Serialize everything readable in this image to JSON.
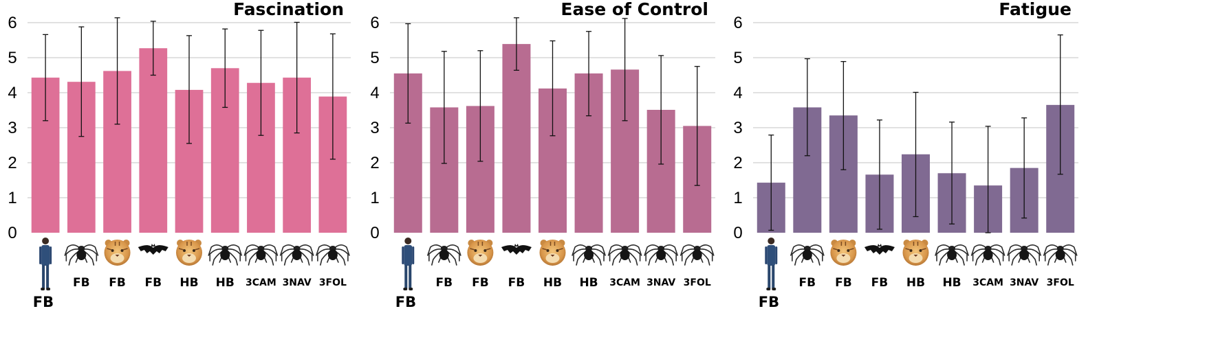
{
  "chart_data": [
    {
      "type": "bar",
      "title": "Fascination",
      "color": "#de7097",
      "ylim": [
        0,
        6
      ],
      "yticks": [
        0,
        1,
        2,
        3,
        4,
        5,
        6
      ],
      "grid": true,
      "categories": [
        "FB",
        "FB",
        "FB",
        "FB",
        "HB",
        "HB",
        "3CAM",
        "3NAV",
        "3FOL"
      ],
      "category_icons": [
        "person-icon",
        "spider-icon",
        "tiger-icon",
        "bat-icon",
        "tiger-icon",
        "spider-icon",
        "spider-icon",
        "spider-icon",
        "spider-icon"
      ],
      "values": [
        4.43,
        4.31,
        4.62,
        5.27,
        4.08,
        4.7,
        4.28,
        4.43,
        3.89
      ],
      "error_low": [
        3.2,
        2.75,
        3.1,
        4.5,
        2.55,
        3.58,
        2.78,
        2.85,
        2.1
      ],
      "error_high": [
        5.66,
        5.88,
        6.14,
        6.04,
        5.63,
        5.82,
        5.78,
        6.01,
        5.68
      ]
    },
    {
      "type": "bar",
      "title": "Ease of Control",
      "color": "#b86c91",
      "ylim": [
        0,
        6
      ],
      "yticks": [
        0,
        1,
        2,
        3,
        4,
        5,
        6
      ],
      "grid": true,
      "categories": [
        "FB",
        "FB",
        "FB",
        "FB",
        "HB",
        "HB",
        "3CAM",
        "3NAV",
        "3FOL"
      ],
      "category_icons": [
        "person-icon",
        "spider-icon",
        "tiger-icon",
        "bat-icon",
        "tiger-icon",
        "spider-icon",
        "spider-icon",
        "spider-icon",
        "spider-icon"
      ],
      "values": [
        4.55,
        3.58,
        3.62,
        5.39,
        4.12,
        4.55,
        4.66,
        3.51,
        3.05
      ],
      "error_low": [
        3.13,
        1.98,
        2.04,
        4.64,
        2.77,
        3.34,
        3.2,
        1.96,
        1.35
      ],
      "error_high": [
        5.97,
        5.18,
        5.2,
        6.14,
        5.48,
        5.75,
        6.12,
        5.06,
        4.75
      ]
    },
    {
      "type": "bar",
      "title": "Fatigue",
      "color": "#806a92",
      "ylim": [
        0,
        6
      ],
      "yticks": [
        0,
        1,
        2,
        3,
        4,
        5,
        6
      ],
      "grid": true,
      "categories": [
        "FB",
        "FB",
        "FB",
        "FB",
        "HB",
        "HB",
        "3CAM",
        "3NAV",
        "3FOL"
      ],
      "category_icons": [
        "person-icon",
        "spider-icon",
        "tiger-icon",
        "bat-icon",
        "tiger-icon",
        "spider-icon",
        "spider-icon",
        "spider-icon",
        "spider-icon"
      ],
      "values": [
        1.43,
        3.58,
        3.35,
        1.66,
        2.24,
        1.7,
        1.35,
        1.85,
        3.65
      ],
      "error_low": [
        0.07,
        2.2,
        1.8,
        0.1,
        0.46,
        0.25,
        0.0,
        0.42,
        1.67
      ],
      "error_high": [
        2.79,
        4.97,
        4.89,
        3.22,
        4.01,
        3.16,
        3.04,
        3.28,
        5.65
      ]
    }
  ]
}
